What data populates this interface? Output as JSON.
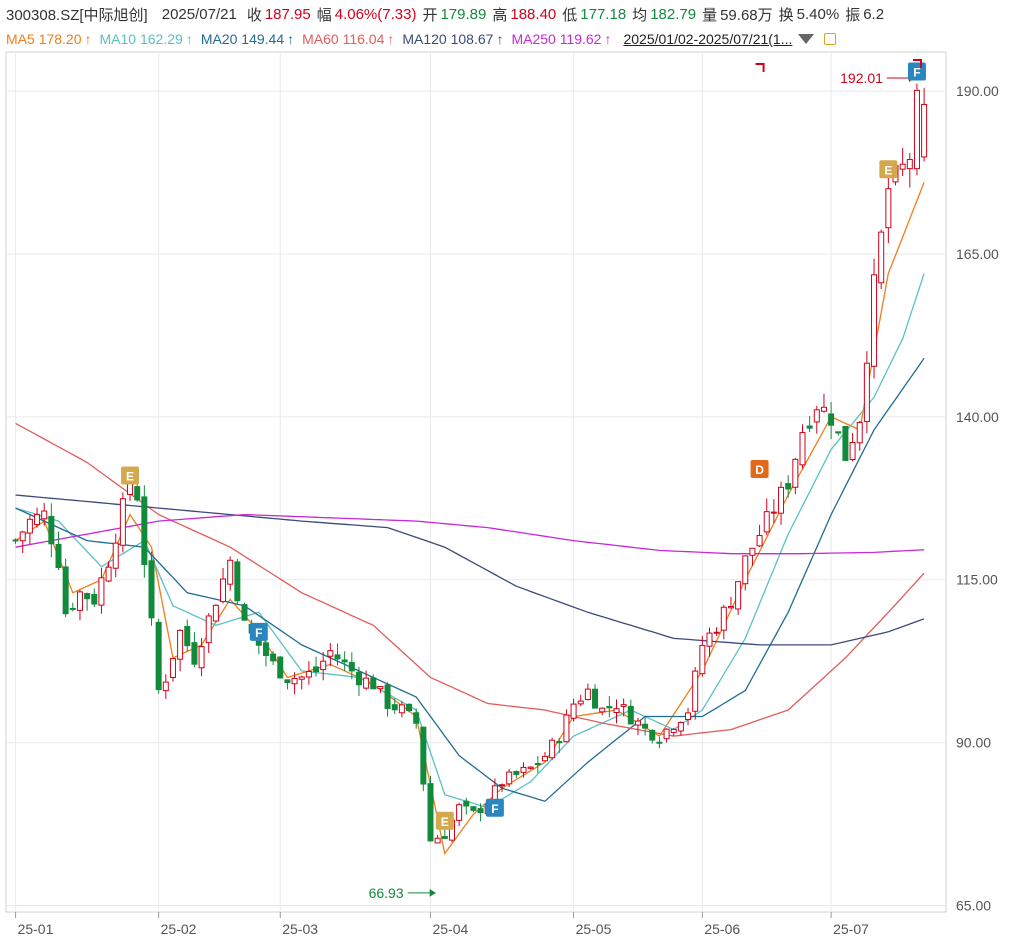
{
  "header": {
    "symbol": "300308.SZ[中际旭创]",
    "date": "2025/07/21",
    "close_label": "收",
    "close": "187.95",
    "change_label": "幅",
    "change": "4.06%(7.33)",
    "open_label": "开",
    "open": "179.89",
    "high_label": "高",
    "high": "188.40",
    "low_label": "低",
    "low": "177.18",
    "avg_label": "均",
    "avg": "182.79",
    "volume_label": "量",
    "volume": "59.68万",
    "turnover_label": "换",
    "turnover": "5.40%",
    "amplitude_label": "振",
    "amplitude": "6.2"
  },
  "ma_legend": [
    {
      "name": "MA5",
      "value": "178.20",
      "color": "#f07d1a"
    },
    {
      "name": "MA10",
      "value": "162.29",
      "color": "#5bc0c4"
    },
    {
      "name": "MA20",
      "value": "149.44",
      "color": "#1f6c94"
    },
    {
      "name": "MA60",
      "value": "116.04",
      "color": "#e25d5d"
    },
    {
      "name": "MA120",
      "value": "108.67",
      "color": "#3c4a7a"
    },
    {
      "name": "MA250",
      "value": "119.62",
      "color": "#c829d8"
    }
  ],
  "range_label": "2025/01/02-2025/07/21(1...",
  "colors": {
    "up": "#d0021b",
    "down": "#128a3c",
    "grid": "#eaeaea"
  },
  "chart_data": {
    "type": "candlestick",
    "y_ticks": [
      "190.00",
      "165.00",
      "140.00",
      "115.00",
      "90.00",
      "65.00"
    ],
    "ylim": [
      64,
      196
    ],
    "x_ticks": [
      "25-01",
      "25-02",
      "25-03",
      "25-04",
      "25-05",
      "25-06",
      "25-07"
    ],
    "x_tick_index": [
      0,
      20,
      37,
      58,
      78,
      96,
      114
    ],
    "n_days": 130,
    "annotations": {
      "max_label": "192.01",
      "min_label": "66.93"
    },
    "markers": [
      {
        "letter": "E",
        "index": 16,
        "value": 131,
        "color": "#d4a94e"
      },
      {
        "letter": "F",
        "index": 34,
        "value": 107,
        "color": "#2a86c0"
      },
      {
        "letter": "E",
        "index": 60,
        "value": 78,
        "color": "#d4a94e"
      },
      {
        "letter": "F",
        "index": 67,
        "value": 80,
        "color": "#2a86c0"
      },
      {
        "letter": "D",
        "index": 104,
        "value": 132,
        "color": "#e06a18"
      },
      {
        "letter": "E",
        "index": 122,
        "value": 178,
        "color": "#d4a94e"
      },
      {
        "letter": "F",
        "index": 126,
        "value": 193,
        "color": "#2a86c0"
      }
    ],
    "close_anchors": [
      [
        0,
        121
      ],
      [
        2,
        124
      ],
      [
        4,
        125
      ],
      [
        6,
        118
      ],
      [
        7,
        110
      ],
      [
        9,
        113
      ],
      [
        11,
        112
      ],
      [
        13,
        118
      ],
      [
        15,
        126
      ],
      [
        16,
        130
      ],
      [
        17,
        128
      ],
      [
        18,
        118
      ],
      [
        20,
        98
      ],
      [
        21,
        100
      ],
      [
        23,
        107
      ],
      [
        25,
        103
      ],
      [
        28,
        112
      ],
      [
        30,
        118
      ],
      [
        32,
        108
      ],
      [
        34,
        105
      ],
      [
        36,
        102
      ],
      [
        38,
        100
      ],
      [
        40,
        100
      ],
      [
        42,
        101
      ],
      [
        44,
        104
      ],
      [
        46,
        102
      ],
      [
        48,
        100
      ],
      [
        50,
        99
      ],
      [
        52,
        96
      ],
      [
        54,
        95
      ],
      [
        56,
        93
      ],
      [
        58,
        75
      ],
      [
        60,
        76
      ],
      [
        62,
        80
      ],
      [
        64,
        79
      ],
      [
        66,
        81
      ],
      [
        68,
        84
      ],
      [
        70,
        85
      ],
      [
        72,
        86
      ],
      [
        74,
        88
      ],
      [
        76,
        91
      ],
      [
        78,
        96
      ],
      [
        80,
        98
      ],
      [
        82,
        95
      ],
      [
        84,
        96
      ],
      [
        86,
        94
      ],
      [
        88,
        92
      ],
      [
        90,
        91
      ],
      [
        92,
        93
      ],
      [
        94,
        95
      ],
      [
        96,
        105
      ],
      [
        98,
        108
      ],
      [
        100,
        112
      ],
      [
        102,
        118
      ],
      [
        104,
        122
      ],
      [
        106,
        126
      ],
      [
        108,
        130
      ],
      [
        110,
        138
      ],
      [
        112,
        142
      ],
      [
        114,
        140
      ],
      [
        116,
        134
      ],
      [
        118,
        140
      ],
      [
        120,
        160
      ],
      [
        122,
        175
      ],
      [
        124,
        178
      ],
      [
        125,
        180
      ],
      [
        126,
        188
      ],
      [
        127,
        188
      ]
    ],
    "ma_series": [
      {
        "name": "MA5",
        "anchors": [
          [
            0,
            121
          ],
          [
            4,
            124
          ],
          [
            8,
            113
          ],
          [
            12,
            115
          ],
          [
            16,
            125
          ],
          [
            19,
            120
          ],
          [
            22,
            103
          ],
          [
            26,
            105
          ],
          [
            30,
            112
          ],
          [
            34,
            107
          ],
          [
            38,
            100
          ],
          [
            44,
            102
          ],
          [
            50,
            99
          ],
          [
            56,
            94
          ],
          [
            60,
            73
          ],
          [
            64,
            79
          ],
          [
            68,
            83
          ],
          [
            74,
            87
          ],
          [
            78,
            94
          ],
          [
            84,
            95
          ],
          [
            90,
            91
          ],
          [
            96,
            101
          ],
          [
            102,
            115
          ],
          [
            108,
            128
          ],
          [
            114,
            140
          ],
          [
            118,
            138
          ],
          [
            122,
            162
          ],
          [
            127,
            176
          ]
        ]
      },
      {
        "name": "MA10",
        "anchors": [
          [
            0,
            126
          ],
          [
            6,
            124
          ],
          [
            12,
            117
          ],
          [
            18,
            121
          ],
          [
            22,
            111
          ],
          [
            28,
            108
          ],
          [
            34,
            110
          ],
          [
            40,
            101
          ],
          [
            48,
            100
          ],
          [
            56,
            95
          ],
          [
            60,
            82
          ],
          [
            66,
            80
          ],
          [
            72,
            84
          ],
          [
            78,
            91
          ],
          [
            86,
            95
          ],
          [
            92,
            92
          ],
          [
            96,
            95
          ],
          [
            102,
            106
          ],
          [
            108,
            122
          ],
          [
            114,
            135
          ],
          [
            120,
            143
          ],
          [
            124,
            152
          ],
          [
            127,
            162
          ]
        ]
      },
      {
        "name": "MA20",
        "anchors": [
          [
            0,
            126
          ],
          [
            10,
            121
          ],
          [
            18,
            120
          ],
          [
            24,
            113
          ],
          [
            32,
            111
          ],
          [
            40,
            105
          ],
          [
            48,
            101
          ],
          [
            56,
            97
          ],
          [
            62,
            88
          ],
          [
            68,
            83
          ],
          [
            74,
            81
          ],
          [
            80,
            87
          ],
          [
            88,
            94
          ],
          [
            96,
            94
          ],
          [
            102,
            98
          ],
          [
            108,
            110
          ],
          [
            114,
            125
          ],
          [
            120,
            138
          ],
          [
            127,
            149
          ]
        ]
      },
      {
        "name": "MA60",
        "anchors": [
          [
            0,
            139
          ],
          [
            10,
            133
          ],
          [
            20,
            125
          ],
          [
            30,
            120
          ],
          [
            40,
            113
          ],
          [
            50,
            108
          ],
          [
            58,
            100
          ],
          [
            66,
            96
          ],
          [
            74,
            95
          ],
          [
            82,
            93
          ],
          [
            92,
            91
          ],
          [
            100,
            92
          ],
          [
            108,
            95
          ],
          [
            116,
            103
          ],
          [
            122,
            110
          ],
          [
            127,
            116
          ]
        ]
      },
      {
        "name": "MA120",
        "anchors": [
          [
            0,
            128
          ],
          [
            10,
            127
          ],
          [
            20,
            126
          ],
          [
            30,
            125
          ],
          [
            40,
            124
          ],
          [
            52,
            123
          ],
          [
            60,
            120
          ],
          [
            70,
            114
          ],
          [
            80,
            110
          ],
          [
            92,
            106
          ],
          [
            104,
            105
          ],
          [
            114,
            105
          ],
          [
            122,
            107
          ],
          [
            127,
            109
          ]
        ]
      },
      {
        "name": "MA250",
        "anchors": [
          [
            0,
            120
          ],
          [
            10,
            122
          ],
          [
            20,
            124
          ],
          [
            32,
            125
          ],
          [
            44,
            124.5
          ],
          [
            56,
            124
          ],
          [
            66,
            123
          ],
          [
            78,
            121
          ],
          [
            90,
            119.5
          ],
          [
            100,
            119
          ],
          [
            110,
            119
          ],
          [
            120,
            119.2
          ],
          [
            127,
            119.6
          ]
        ]
      }
    ]
  }
}
